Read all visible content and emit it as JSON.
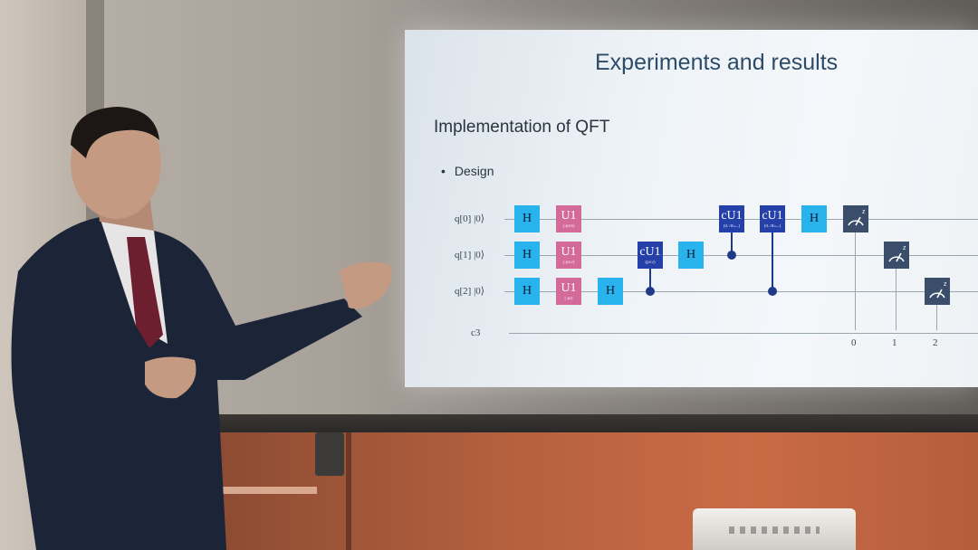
{
  "slide": {
    "title": "Experiments and results",
    "subtitle": "Implementation of QFT",
    "bullet": "Design"
  },
  "circuit": {
    "qubits": [
      {
        "label": "q[0]",
        "init": "|0⟩"
      },
      {
        "label": "q[1]",
        "init": "|0⟩"
      },
      {
        "label": "q[2]",
        "init": "|0⟩"
      }
    ],
    "classical_register": "c3",
    "h_label": "H",
    "u1_label": "U1",
    "u1_params": [
      "(-pi/4)",
      "(-pi/2)",
      "(-pi)"
    ],
    "cu1_label": "cU1",
    "cu1_params": [
      "(pi/2)",
      "(0.785...)",
      "(0.785...)"
    ],
    "measure_bits": [
      "0",
      "1",
      "2"
    ],
    "colors": {
      "h_gate": "#29b3ec",
      "u1_gate": "#d46a9a",
      "cu1_gate": "#2540a8",
      "measure": "#3a4d6a"
    }
  }
}
